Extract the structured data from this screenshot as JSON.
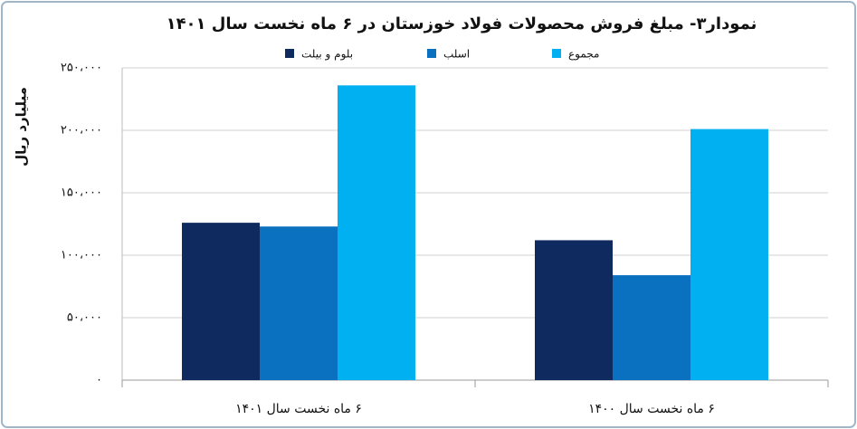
{
  "chart_data": {
    "type": "bar",
    "title": "نمودار۳- مبلغ فروش محصولات فولاد خوزستان در ۶ ماه نخست سال ۱۴۰۱",
    "y_label": "میلیارد ریال",
    "categories": [
      "۶ ماه نخست سال ۱۴۰۱",
      "۶ ماه نخست سال ۱۴۰۰"
    ],
    "series": [
      {
        "name": "بلوم و بیلت",
        "color": "#0e2a5e",
        "values": [
          126000,
          112000
        ]
      },
      {
        "name": "اسلب",
        "color": "#0a70c0",
        "values": [
          123000,
          84000
        ]
      },
      {
        "name": "مجموع",
        "color": "#00b0f0",
        "values": [
          236000,
          201000
        ]
      }
    ],
    "ylim": [
      0,
      250000
    ],
    "yticks": [
      {
        "value": 0,
        "label": "۰"
      },
      {
        "value": 50000,
        "label": "۵۰،۰۰۰"
      },
      {
        "value": 100000,
        "label": "۱۰۰،۰۰۰"
      },
      {
        "value": 150000,
        "label": "۱۵۰،۰۰۰"
      },
      {
        "value": 200000,
        "label": "۲۰۰،۰۰۰"
      },
      {
        "value": 250000,
        "label": "۲۵۰،۰۰۰"
      }
    ],
    "grid": true
  }
}
